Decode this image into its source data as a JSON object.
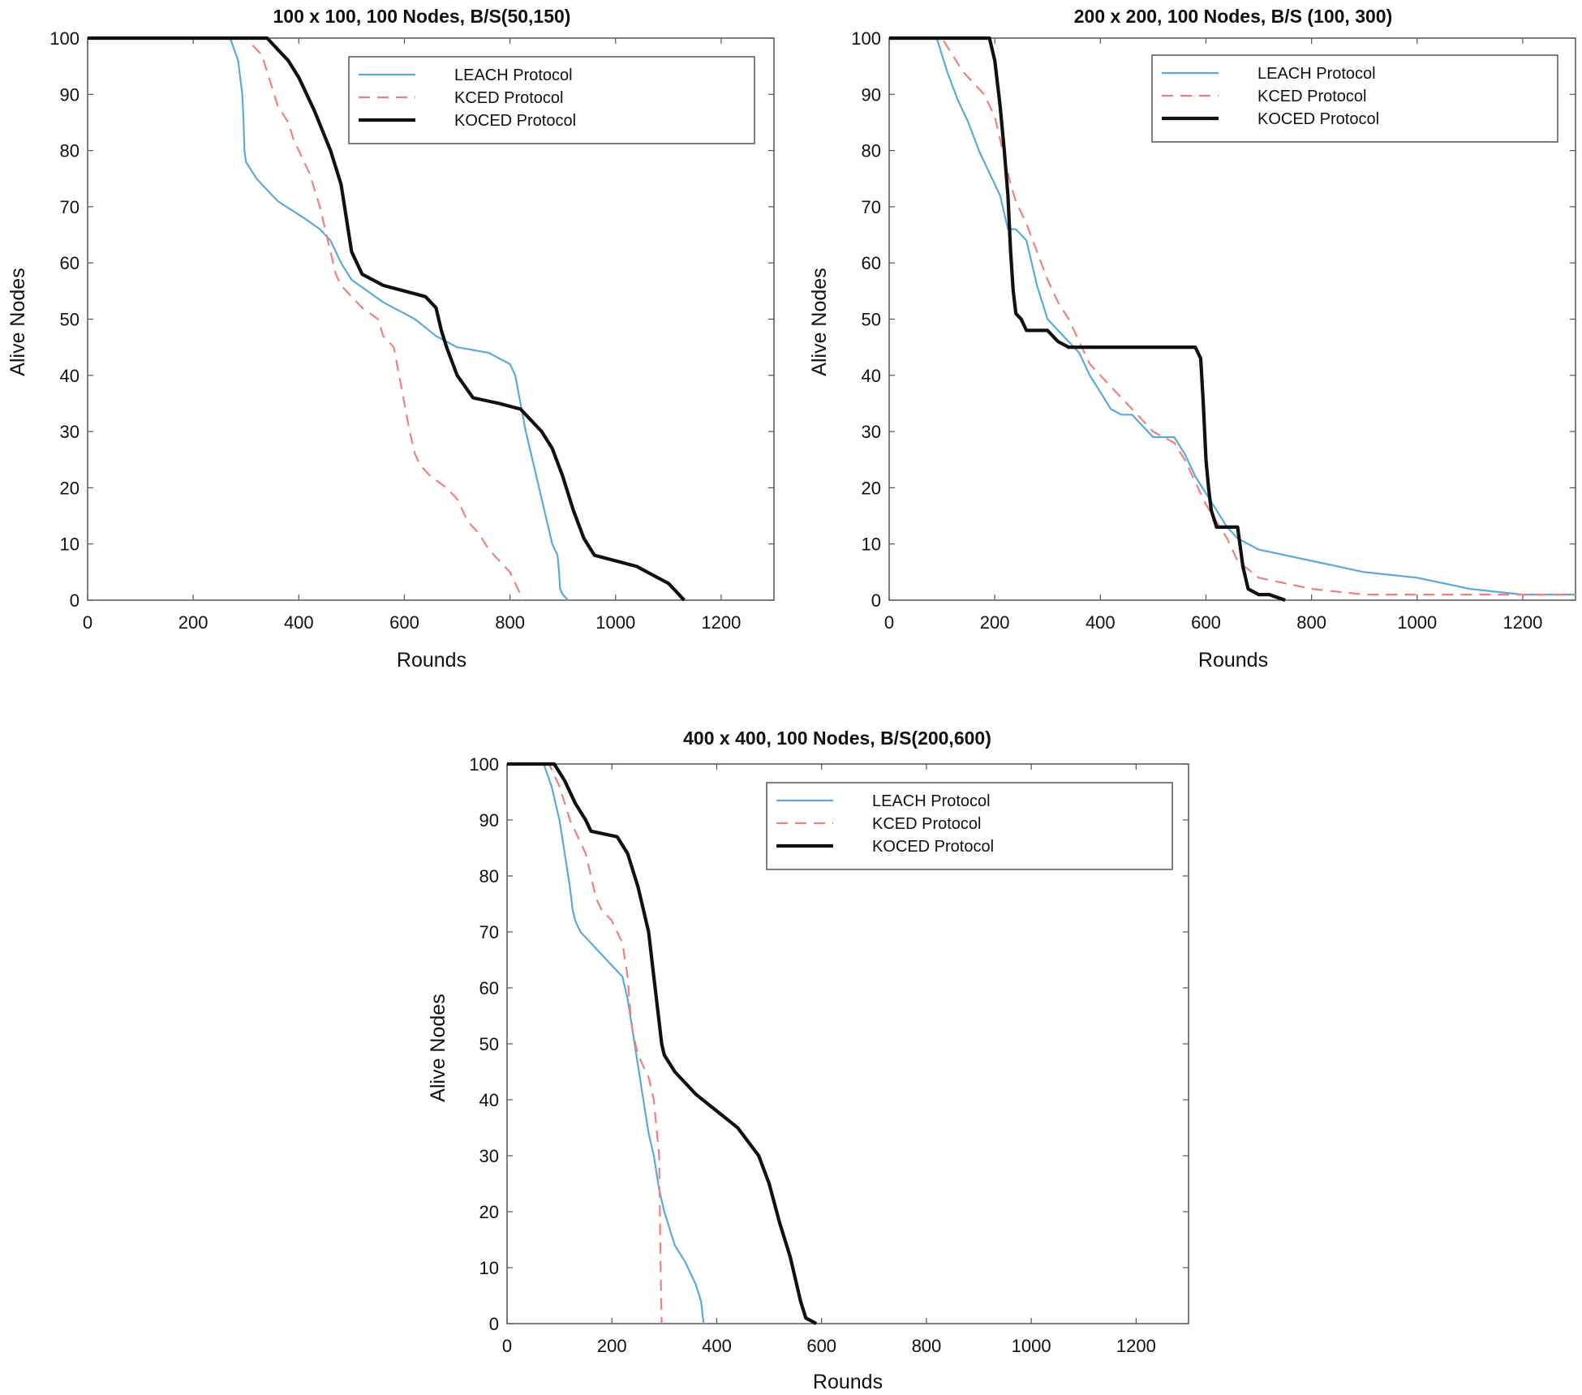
{
  "chart_data": [
    {
      "type": "line",
      "title": "100 x 100, 100 Nodes, B/S(50,150)",
      "xlabel": "Rounds",
      "ylabel": "Alive Nodes",
      "xlim": [
        0,
        1300
      ],
      "ylim": [
        0,
        100
      ],
      "xticks": [
        0,
        200,
        400,
        600,
        800,
        1000,
        1200
      ],
      "yticks": [
        0,
        10,
        20,
        30,
        40,
        50,
        60,
        70,
        80,
        90,
        100
      ],
      "legend": "top-right",
      "series": [
        {
          "name": "LEACH Protocol",
          "color": "#5aa9dc",
          "dash": "solid",
          "width": 2.2,
          "x": [
            0,
            270,
            285,
            293,
            295,
            297,
            300,
            320,
            360,
            410,
            440,
            460,
            480,
            500,
            560,
            620,
            660,
            700,
            760,
            800,
            810,
            820,
            830,
            850,
            870,
            880,
            890,
            893,
            895,
            900,
            910
          ],
          "y": [
            100,
            100,
            96,
            90,
            86,
            80,
            78,
            75,
            71,
            68,
            66,
            64,
            60,
            57,
            53,
            50,
            47,
            45,
            44,
            42,
            40,
            35,
            30,
            22,
            14,
            10,
            8,
            5,
            2,
            1,
            0
          ]
        },
        {
          "name": "KCED Protocol",
          "color": "#f08080",
          "dash": "dash",
          "width": 2.2,
          "x": [
            0,
            300,
            330,
            340,
            350,
            360,
            380,
            390,
            400,
            420,
            430,
            440,
            450,
            460,
            470,
            480,
            500,
            520,
            550,
            560,
            580,
            590,
            600,
            610,
            620,
            630,
            650,
            680,
            700,
            720,
            740,
            760,
            780,
            800,
            810,
            820,
            825
          ],
          "y": [
            100,
            100,
            97,
            94,
            91,
            88,
            85,
            82,
            80,
            76,
            73,
            70,
            66,
            62,
            58,
            56,
            54,
            52,
            50,
            47,
            45,
            40,
            35,
            30,
            26,
            24,
            22,
            20,
            18,
            14,
            12,
            9,
            7,
            5,
            3,
            1,
            0
          ]
        },
        {
          "name": "KOCED Protocol",
          "color": "#111111",
          "dash": "solid",
          "width": 4.2,
          "x": [
            0,
            340,
            360,
            380,
            400,
            430,
            460,
            480,
            490,
            500,
            520,
            560,
            600,
            640,
            660,
            670,
            680,
            700,
            730,
            780,
            820,
            840,
            860,
            880,
            900,
            920,
            940,
            960,
            1000,
            1040,
            1080,
            1100,
            1110,
            1120,
            1125,
            1130
          ],
          "y": [
            100,
            100,
            98,
            96,
            93,
            87,
            80,
            74,
            68,
            62,
            58,
            56,
            55,
            54,
            52,
            48,
            45,
            40,
            36,
            35,
            34,
            32,
            30,
            27,
            22,
            16,
            11,
            8,
            7,
            6,
            4,
            3,
            2,
            1,
            0.5,
            0
          ]
        }
      ]
    },
    {
      "type": "line",
      "title": "200 x 200, 100 Nodes, B/S (100, 300)",
      "xlabel": "Rounds",
      "ylabel": "Alive Nodes",
      "xlim": [
        0,
        1300
      ],
      "ylim": [
        0,
        100
      ],
      "xticks": [
        0,
        200,
        400,
        600,
        800,
        1000,
        1200
      ],
      "yticks": [
        0,
        10,
        20,
        30,
        40,
        50,
        60,
        70,
        80,
        90,
        100
      ],
      "legend": "top-right",
      "series": [
        {
          "name": "LEACH Protocol",
          "color": "#5aa9dc",
          "dash": "solid",
          "width": 2.2,
          "x": [
            0,
            90,
            110,
            130,
            150,
            170,
            190,
            210,
            225,
            240,
            260,
            280,
            300,
            320,
            340,
            360,
            380,
            400,
            420,
            440,
            460,
            480,
            500,
            540,
            560,
            580,
            600,
            620,
            640,
            660,
            700,
            800,
            900,
            1000,
            1100,
            1200,
            1250,
            1300
          ],
          "y": [
            100,
            100,
            94,
            89,
            85,
            80,
            76,
            72,
            66,
            66,
            64,
            56,
            50,
            48,
            46,
            44,
            40,
            37,
            34,
            33,
            33,
            31,
            29,
            29,
            26,
            22,
            19,
            16,
            13,
            11,
            9,
            7,
            5,
            4,
            2,
            1,
            1,
            1
          ]
        },
        {
          "name": "KCED Protocol",
          "color": "#f08080",
          "dash": "dash",
          "width": 2.2,
          "x": [
            0,
            100,
            120,
            140,
            160,
            180,
            200,
            210,
            220,
            230,
            240,
            260,
            280,
            300,
            320,
            340,
            360,
            380,
            400,
            420,
            440,
            460,
            480,
            500,
            540,
            560,
            580,
            600,
            620,
            640,
            660,
            700,
            800,
            900,
            1000,
            1100,
            1200,
            1300
          ],
          "y": [
            100,
            100,
            97,
            94,
            92,
            90,
            86,
            82,
            78,
            74,
            71,
            67,
            62,
            57,
            53,
            50,
            46,
            42,
            40,
            38,
            36,
            34,
            32,
            30,
            28,
            25,
            21,
            17,
            14,
            11,
            7,
            4,
            2,
            1,
            1,
            1,
            1,
            1
          ]
        },
        {
          "name": "KOCED Protocol",
          "color": "#111111",
          "dash": "solid",
          "width": 4.2,
          "x": [
            0,
            190,
            200,
            210,
            218,
            225,
            230,
            235,
            240,
            250,
            260,
            300,
            320,
            340,
            560,
            580,
            590,
            595,
            600,
            605,
            610,
            620,
            640,
            660,
            670,
            680,
            700,
            720,
            750
          ],
          "y": [
            100,
            100,
            96,
            88,
            80,
            72,
            62,
            55,
            51,
            50,
            48,
            48,
            46,
            45,
            45,
            45,
            43,
            35,
            25,
            20,
            16,
            13,
            13,
            13,
            6,
            2,
            1,
            1,
            0
          ]
        }
      ]
    },
    {
      "type": "line",
      "title": "400 x 400, 100 Nodes, B/S(200,600)",
      "xlabel": "Rounds",
      "ylabel": "Alive Nodes",
      "xlim": [
        0,
        1300
      ],
      "ylim": [
        0,
        100
      ],
      "xticks": [
        0,
        200,
        400,
        600,
        800,
        1000,
        1200
      ],
      "yticks": [
        0,
        10,
        20,
        30,
        40,
        50,
        60,
        70,
        80,
        90,
        100
      ],
      "legend": "top-right",
      "series": [
        {
          "name": "LEACH Protocol",
          "color": "#5aa9dc",
          "dash": "solid",
          "width": 2.2,
          "x": [
            0,
            70,
            85,
            100,
            110,
            120,
            125,
            130,
            140,
            160,
            180,
            200,
            220,
            230,
            240,
            250,
            260,
            270,
            280,
            290,
            295,
            300,
            310,
            320,
            340,
            360,
            370,
            375
          ],
          "y": [
            100,
            100,
            96,
            90,
            84,
            78,
            74,
            72,
            70,
            68,
            66,
            64,
            62,
            58,
            52,
            46,
            40,
            34,
            30,
            24,
            22,
            20,
            17,
            14,
            11,
            7,
            4,
            0
          ]
        },
        {
          "name": "KCED Protocol",
          "color": "#f08080",
          "dash": "dash",
          "width": 2.2,
          "x": [
            0,
            80,
            100,
            120,
            140,
            150,
            160,
            170,
            180,
            200,
            220,
            230,
            235,
            240,
            250,
            260,
            270,
            280,
            290,
            293,
            295
          ],
          "y": [
            100,
            100,
            96,
            90,
            86,
            84,
            80,
            76,
            74,
            72,
            68,
            62,
            56,
            52,
            48,
            46,
            44,
            40,
            30,
            10,
            0
          ]
        },
        {
          "name": "KOCED Protocol",
          "color": "#111111",
          "dash": "solid",
          "width": 4.2,
          "x": [
            0,
            90,
            110,
            130,
            150,
            160,
            210,
            230,
            250,
            270,
            280,
            290,
            295,
            300,
            320,
            360,
            400,
            440,
            480,
            500,
            520,
            540,
            550,
            560,
            570,
            580,
            590
          ],
          "y": [
            100,
            100,
            97,
            93,
            90,
            88,
            87,
            84,
            78,
            70,
            62,
            54,
            50,
            48,
            45,
            41,
            38,
            35,
            30,
            25,
            18,
            12,
            8,
            4,
            1,
            0.5,
            0
          ]
        }
      ]
    }
  ]
}
